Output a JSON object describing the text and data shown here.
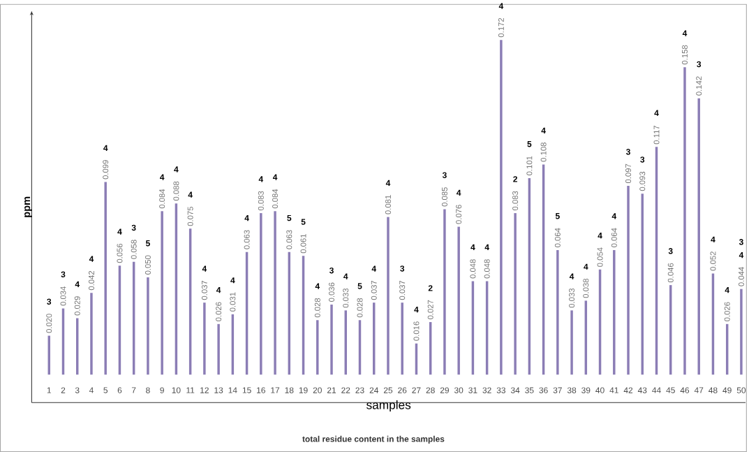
{
  "chart_data": {
    "type": "bar",
    "xlabel": "samples",
    "ylabel": "ppm",
    "categories": [
      "1",
      "2",
      "3",
      "4",
      "5",
      "6",
      "7",
      "8",
      "9",
      "10",
      "11",
      "12",
      "13",
      "14",
      "15",
      "16",
      "17",
      "18",
      "19",
      "20",
      "21",
      "22",
      "23",
      "24",
      "25",
      "26",
      "27",
      "28",
      "29",
      "30",
      "31",
      "32",
      "33",
      "34",
      "35",
      "36",
      "37",
      "38",
      "39",
      "40",
      "41",
      "42",
      "43",
      "44",
      "45",
      "46",
      "47",
      "48",
      "49",
      "50"
    ],
    "values": [
      0.02,
      0.034,
      0.029,
      0.042,
      0.099,
      0.056,
      0.058,
      0.05,
      0.084,
      0.088,
      0.075,
      0.037,
      0.026,
      0.031,
      0.063,
      0.083,
      0.084,
      0.063,
      0.061,
      0.028,
      0.036,
      0.033,
      0.028,
      0.037,
      0.081,
      0.037,
      0.016,
      0.027,
      0.085,
      0.076,
      0.048,
      0.048,
      0.172,
      0.083,
      0.101,
      0.108,
      0.064,
      0.033,
      0.038,
      0.054,
      0.064,
      0.097,
      0.093,
      0.117,
      0.046,
      0.158,
      0.142,
      0.052,
      0.026,
      0.044
    ],
    "value_labels": [
      "0.020",
      "0.034",
      "0.029",
      "0.042",
      "0.099",
      "0.056",
      "0.058",
      "0.050",
      "0.084",
      "0.088",
      "0.075",
      "0.037",
      "0.026",
      "0.031",
      "0.063",
      "0.083",
      "0.084",
      "0.063",
      "0.061",
      "0.028",
      "0.036",
      "0.033",
      "0.028",
      "0.037",
      "0.081",
      "0.037",
      "0.016",
      "0.027",
      "0.085",
      "0.076",
      "0.048",
      "0.048",
      "0.172",
      "0.083",
      "0.101",
      "0.108",
      "0.064",
      "0.033",
      "0.038",
      "0.054",
      "0.064",
      "0.097",
      "0.093",
      "0.117",
      "0.046",
      "0.158",
      "0.142",
      "0.052",
      "0.026",
      "0.044"
    ],
    "color": "#8b7db5",
    "annotations": [
      "3",
      "3",
      "4",
      "4",
      "4",
      "4",
      "3",
      "5",
      "4",
      "4",
      "4",
      "4",
      "4",
      "4",
      "4",
      "4",
      "4",
      "5",
      "5",
      "4",
      "3",
      "4",
      "5",
      "4",
      "4",
      "3",
      "4",
      "2",
      "3",
      "4",
      "4",
      "4",
      "4",
      "2",
      "5",
      "4",
      "5",
      "4",
      "4",
      "4",
      "4",
      "3",
      "3",
      "4",
      "3",
      "4",
      "3",
      "4",
      "4",
      "4",
      "3",
      "total residue content in the samples"
    ]
  }
}
